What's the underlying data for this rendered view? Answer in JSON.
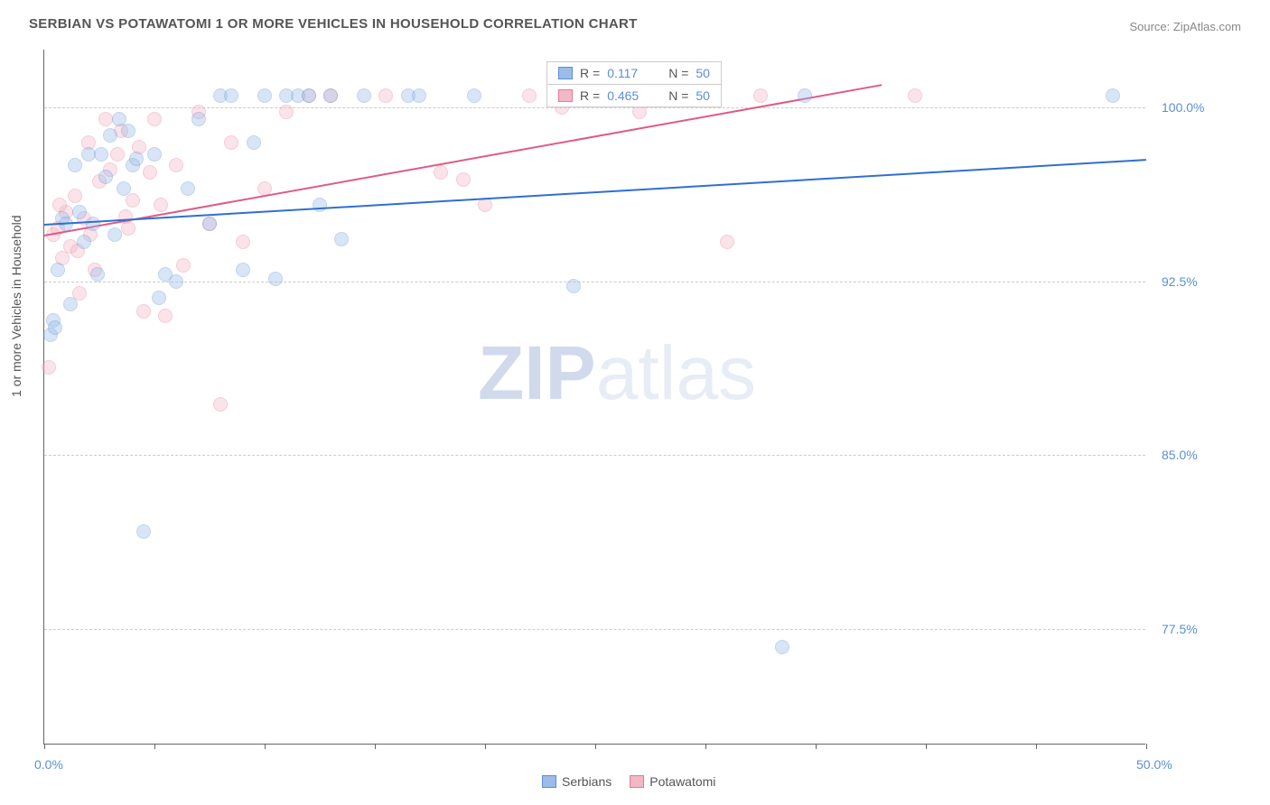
{
  "title": "SERBIAN VS POTAWATOMI 1 OR MORE VEHICLES IN HOUSEHOLD CORRELATION CHART",
  "source": "Source: ZipAtlas.com",
  "watermark_bold": "ZIP",
  "watermark_light": "atlas",
  "y_axis_title": "1 or more Vehicles in Household",
  "chart": {
    "type": "scatter",
    "xlim": [
      0,
      50
    ],
    "ylim": [
      72.5,
      102.5
    ],
    "x_ticks_label": [
      "0.0%",
      "50.0%"
    ],
    "x_ticks_minor": [
      0,
      5,
      10,
      15,
      20,
      25,
      30,
      35,
      40,
      45,
      50
    ],
    "y_ticks": [
      77.5,
      85.0,
      92.5,
      100.0
    ],
    "y_ticks_label": [
      "77.5%",
      "85.0%",
      "92.5%",
      "100.0%"
    ],
    "grid_color": "#cccccc",
    "background_color": "#ffffff",
    "point_radius": 8,
    "point_opacity": 0.38,
    "series": {
      "serbians": {
        "label": "Serbians",
        "color_fill": "#9bbce8",
        "color_stroke": "#5b8fd6",
        "trend_color": "#2f6fd0",
        "R": "0.117",
        "N": "50",
        "trend": {
          "x0": 0,
          "y0": 95.0,
          "x1": 50,
          "y1": 97.8
        },
        "points": [
          [
            0.3,
            90.2
          ],
          [
            0.4,
            90.8
          ],
          [
            0.6,
            93.0
          ],
          [
            0.8,
            95.2
          ],
          [
            1.0,
            95.0
          ],
          [
            1.2,
            91.5
          ],
          [
            1.4,
            97.5
          ],
          [
            1.6,
            95.5
          ],
          [
            1.8,
            94.2
          ],
          [
            2.0,
            98.0
          ],
          [
            2.2,
            95.0
          ],
          [
            2.4,
            92.8
          ],
          [
            2.6,
            98.0
          ],
          [
            2.8,
            97.0
          ],
          [
            3.0,
            98.8
          ],
          [
            3.2,
            94.5
          ],
          [
            3.4,
            99.5
          ],
          [
            3.6,
            96.5
          ],
          [
            3.8,
            99.0
          ],
          [
            4.0,
            97.5
          ],
          [
            4.2,
            97.8
          ],
          [
            4.5,
            81.7
          ],
          [
            5.0,
            98.0
          ],
          [
            5.2,
            91.8
          ],
          [
            5.5,
            92.8
          ],
          [
            6.0,
            92.5
          ],
          [
            6.5,
            96.5
          ],
          [
            7.0,
            99.5
          ],
          [
            7.5,
            95.0
          ],
          [
            8.0,
            100.5
          ],
          [
            8.5,
            100.5
          ],
          [
            9.0,
            93.0
          ],
          [
            9.5,
            98.5
          ],
          [
            10.0,
            100.5
          ],
          [
            10.5,
            92.6
          ],
          [
            11.0,
            100.5
          ],
          [
            11.5,
            100.5
          ],
          [
            12.0,
            100.5
          ],
          [
            12.5,
            95.8
          ],
          [
            13.0,
            100.5
          ],
          [
            13.5,
            94.3
          ],
          [
            14.5,
            100.5
          ],
          [
            16.5,
            100.5
          ],
          [
            17.0,
            100.5
          ],
          [
            19.5,
            100.5
          ],
          [
            24.0,
            92.3
          ],
          [
            33.5,
            76.7
          ],
          [
            34.5,
            100.5
          ],
          [
            48.5,
            100.5
          ],
          [
            0.5,
            90.5
          ]
        ]
      },
      "potawatomi": {
        "label": "Potawatomi",
        "color_fill": "#f2b8c6",
        "color_stroke": "#e47a9a",
        "trend_color": "#e05a85",
        "R": "0.465",
        "N": "50",
        "trend": {
          "x0": 0,
          "y0": 94.5,
          "x1": 38,
          "y1": 101.0
        },
        "points": [
          [
            0.2,
            88.8
          ],
          [
            0.4,
            94.5
          ],
          [
            0.6,
            94.8
          ],
          [
            0.8,
            93.5
          ],
          [
            1.0,
            95.5
          ],
          [
            1.2,
            94.0
          ],
          [
            1.4,
            96.2
          ],
          [
            1.6,
            92.0
          ],
          [
            1.8,
            95.2
          ],
          [
            2.0,
            98.5
          ],
          [
            2.3,
            93.0
          ],
          [
            2.5,
            96.8
          ],
          [
            2.8,
            99.5
          ],
          [
            3.0,
            97.3
          ],
          [
            3.3,
            98.0
          ],
          [
            3.5,
            99.0
          ],
          [
            3.8,
            94.8
          ],
          [
            4.0,
            96.0
          ],
          [
            4.3,
            98.3
          ],
          [
            4.5,
            91.2
          ],
          [
            4.8,
            97.2
          ],
          [
            5.0,
            99.5
          ],
          [
            5.3,
            95.8
          ],
          [
            5.5,
            91.0
          ],
          [
            6.0,
            97.5
          ],
          [
            6.3,
            93.2
          ],
          [
            7.0,
            99.8
          ],
          [
            7.5,
            95.0
          ],
          [
            8.0,
            87.2
          ],
          [
            8.5,
            98.5
          ],
          [
            9.0,
            94.2
          ],
          [
            10.0,
            96.5
          ],
          [
            11.0,
            99.8
          ],
          [
            12.0,
            100.5
          ],
          [
            13.0,
            100.5
          ],
          [
            15.5,
            100.5
          ],
          [
            18.0,
            97.2
          ],
          [
            19.0,
            96.9
          ],
          [
            20.0,
            95.8
          ],
          [
            22.0,
            100.5
          ],
          [
            23.5,
            100.0
          ],
          [
            27.0,
            99.8
          ],
          [
            29.5,
            100.5
          ],
          [
            31.0,
            94.2
          ],
          [
            32.5,
            100.5
          ],
          [
            39.5,
            100.5
          ],
          [
            0.7,
            95.8
          ],
          [
            1.5,
            93.8
          ],
          [
            2.1,
            94.5
          ],
          [
            3.7,
            95.3
          ]
        ]
      }
    }
  },
  "legend_series": [
    "serbians",
    "potawatomi"
  ]
}
